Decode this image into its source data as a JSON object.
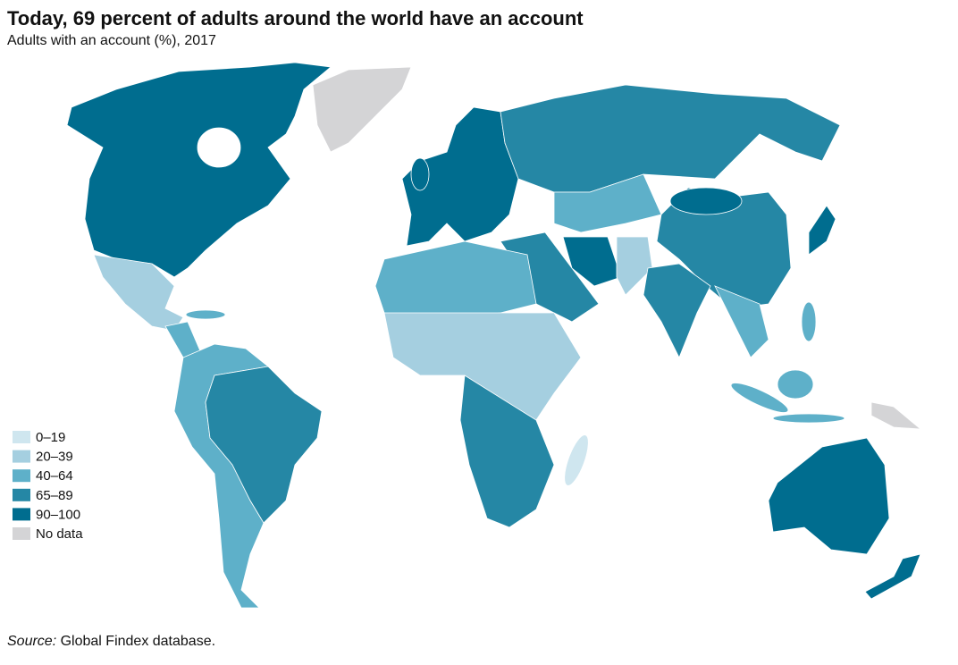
{
  "header": {
    "title": "Today, 69 percent of adults around the world have an account",
    "subtitle": "Adults with an account (%), 2017"
  },
  "legend": {
    "items": [
      {
        "label": "0–19",
        "color": "#cfe6ef"
      },
      {
        "label": "20–39",
        "color": "#a5cfe0"
      },
      {
        "label": "40–64",
        "color": "#5eb0c9"
      },
      {
        "label": "65–89",
        "color": "#2587a5"
      },
      {
        "label": "90–100",
        "color": "#006d8f"
      },
      {
        "label": "No data",
        "color": "#d4d4d6"
      }
    ]
  },
  "source": {
    "label": "Source:",
    "text": "Global Findex database."
  }
}
